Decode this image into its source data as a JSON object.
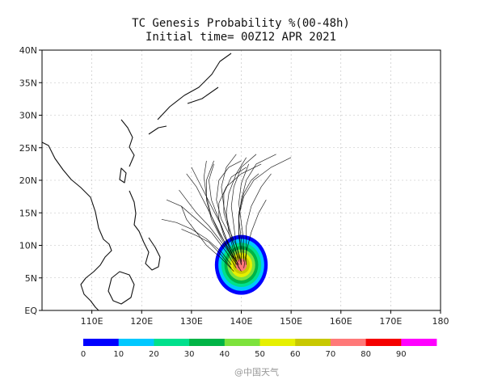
{
  "chart_data": {
    "type": "heatmap",
    "title": "TC Genesis Probability %(00-48h)",
    "subtitle": "Initial time= 00Z12 APR 2021",
    "xlim": [
      100,
      180
    ],
    "ylim": [
      0,
      40
    ],
    "x_ticks": [
      "110E",
      "120E",
      "130E",
      "140E",
      "150E",
      "160E",
      "170E",
      "180"
    ],
    "x_tick_values": [
      110,
      120,
      130,
      140,
      150,
      160,
      170,
      180
    ],
    "y_ticks": [
      "EQ",
      "5N",
      "10N",
      "15N",
      "20N",
      "25N",
      "30N",
      "35N",
      "40N"
    ],
    "y_tick_values": [
      0,
      5,
      10,
      15,
      20,
      25,
      30,
      35,
      40
    ],
    "grid": true,
    "colorbar": {
      "levels": [
        "0",
        "10",
        "20",
        "30",
        "40",
        "50",
        "60",
        "70",
        "80",
        "90"
      ],
      "colors": [
        "#0000ff",
        "#00c8ff",
        "#00e08c",
        "#00b446",
        "#7de23c",
        "#e6f000",
        "#c8c800",
        "#ff7878",
        "#f50000",
        "#ff00ff"
      ]
    },
    "probability_center": {
      "lon": 140,
      "lat": 7
    },
    "probability_rings": [
      {
        "level": 10,
        "lon_radius": 5.3,
        "lat_radius": 4.6
      },
      {
        "level": 20,
        "lon_radius": 4.6,
        "lat_radius": 4.0
      },
      {
        "level": 30,
        "lon_radius": 4.0,
        "lat_radius": 3.4
      },
      {
        "level": 40,
        "lon_radius": 3.4,
        "lat_radius": 2.9
      },
      {
        "level": 50,
        "lon_radius": 2.8,
        "lat_radius": 2.4
      },
      {
        "level": 60,
        "lon_radius": 2.2,
        "lat_radius": 1.9
      },
      {
        "level": 70,
        "lon_radius": 1.7,
        "lat_radius": 1.4
      },
      {
        "level": 80,
        "lon_radius": 1.1,
        "lat_radius": 0.95
      }
    ],
    "ensemble_tracks": [
      [
        [
          138.5,
          7.5
        ],
        [
          137,
          10
        ],
        [
          135,
          13
        ],
        [
          133,
          16
        ],
        [
          131,
          19
        ],
        [
          129,
          21
        ]
      ],
      [
        [
          139,
          7
        ],
        [
          137.5,
          10
        ],
        [
          136,
          13
        ],
        [
          134,
          16
        ],
        [
          132,
          19
        ],
        [
          130,
          22
        ]
      ],
      [
        [
          139.5,
          7.5
        ],
        [
          138.5,
          10
        ],
        [
          137.5,
          13
        ],
        [
          136.5,
          16
        ],
        [
          136,
          19
        ],
        [
          137,
          22
        ],
        [
          139,
          24
        ]
      ],
      [
        [
          140,
          7
        ],
        [
          139,
          10
        ],
        [
          138.5,
          13
        ],
        [
          138,
          16
        ],
        [
          138.5,
          19
        ],
        [
          140,
          22
        ],
        [
          143,
          24
        ]
      ],
      [
        [
          140.5,
          8
        ],
        [
          140,
          11
        ],
        [
          139.5,
          14
        ],
        [
          140,
          17
        ],
        [
          141,
          20
        ],
        [
          143,
          22.5
        ],
        [
          147,
          24
        ]
      ],
      [
        [
          139,
          6.5
        ],
        [
          137,
          9
        ],
        [
          134,
          12
        ],
        [
          131,
          14
        ],
        [
          128,
          16
        ],
        [
          125,
          17
        ]
      ],
      [
        [
          138,
          7
        ],
        [
          136,
          9
        ],
        [
          133,
          11
        ],
        [
          130,
          12.5
        ],
        [
          127,
          13.5
        ],
        [
          124,
          14
        ]
      ],
      [
        [
          140,
          7.5
        ],
        [
          139,
          10
        ],
        [
          137.5,
          12.5
        ],
        [
          136.5,
          15
        ],
        [
          136.5,
          18
        ],
        [
          138,
          20.5
        ],
        [
          141,
          22
        ]
      ],
      [
        [
          141,
          7
        ],
        [
          141,
          10
        ],
        [
          141,
          13
        ],
        [
          142,
          16
        ],
        [
          144,
          19
        ],
        [
          146,
          21
        ]
      ],
      [
        [
          139.5,
          8
        ],
        [
          138,
          11
        ],
        [
          136,
          14
        ],
        [
          135,
          17
        ],
        [
          135.5,
          20
        ],
        [
          137.5,
          22
        ],
        [
          140,
          23
        ]
      ],
      [
        [
          138.5,
          6
        ],
        [
          136,
          8
        ],
        [
          133,
          10
        ],
        [
          131,
          12
        ],
        [
          129,
          14
        ],
        [
          128,
          16
        ]
      ],
      [
        [
          140.5,
          6.5
        ],
        [
          141,
          9
        ],
        [
          142,
          12
        ],
        [
          143.5,
          15
        ],
        [
          145,
          17
        ]
      ],
      [
        [
          139,
          8
        ],
        [
          137,
          11
        ],
        [
          135.5,
          14
        ],
        [
          134,
          17
        ],
        [
          133.5,
          20
        ],
        [
          134.5,
          22.5
        ]
      ],
      [
        [
          140,
          6
        ],
        [
          138,
          8.5
        ],
        [
          136,
          11
        ],
        [
          134,
          14
        ],
        [
          133,
          17
        ],
        [
          133,
          20
        ],
        [
          134.5,
          23
        ]
      ],
      [
        [
          139.5,
          7
        ],
        [
          138,
          9
        ],
        [
          136.5,
          11.5
        ],
        [
          135.5,
          14
        ],
        [
          135.5,
          16.5
        ],
        [
          137,
          19
        ],
        [
          140,
          21
        ],
        [
          144,
          22.5
        ]
      ],
      [
        [
          140,
          8.5
        ],
        [
          139.5,
          11.5
        ],
        [
          139.5,
          14.5
        ],
        [
          140.5,
          17.5
        ],
        [
          142.5,
          20
        ],
        [
          146,
          22
        ],
        [
          150,
          23.5
        ]
      ],
      [
        [
          138.5,
          8
        ],
        [
          136,
          10.5
        ],
        [
          133.5,
          13
        ],
        [
          131,
          15
        ],
        [
          129,
          17
        ],
        [
          127.5,
          18.5
        ]
      ],
      [
        [
          139.5,
          6.5
        ],
        [
          138.5,
          9
        ],
        [
          137.5,
          12
        ],
        [
          137,
          15
        ],
        [
          137.5,
          18
        ],
        [
          139,
          21
        ],
        [
          141,
          23.5
        ]
      ],
      [
        [
          140.5,
          7.5
        ],
        [
          140.5,
          10.5
        ],
        [
          140,
          13.5
        ],
        [
          139.5,
          16.5
        ],
        [
          140,
          19.5
        ],
        [
          141.5,
          22.5
        ]
      ],
      [
        [
          139,
          7.5
        ],
        [
          137.5,
          9.5
        ],
        [
          135.5,
          12
        ],
        [
          134,
          14.5
        ],
        [
          133,
          17.5
        ],
        [
          132.5,
          20.5
        ],
        [
          133,
          23
        ]
      ],
      [
        [
          138,
          6.5
        ],
        [
          136,
          8.5
        ],
        [
          133.5,
          10.5
        ],
        [
          131,
          11.5
        ],
        [
          128,
          12.5
        ]
      ],
      [
        [
          140,
          7
        ],
        [
          140,
          9.5
        ],
        [
          139.5,
          12
        ],
        [
          139.5,
          15
        ],
        [
          140.5,
          18
        ],
        [
          142,
          20
        ],
        [
          143.5,
          21
        ]
      ]
    ]
  },
  "watermark": {
    "text": "@中国天气"
  }
}
